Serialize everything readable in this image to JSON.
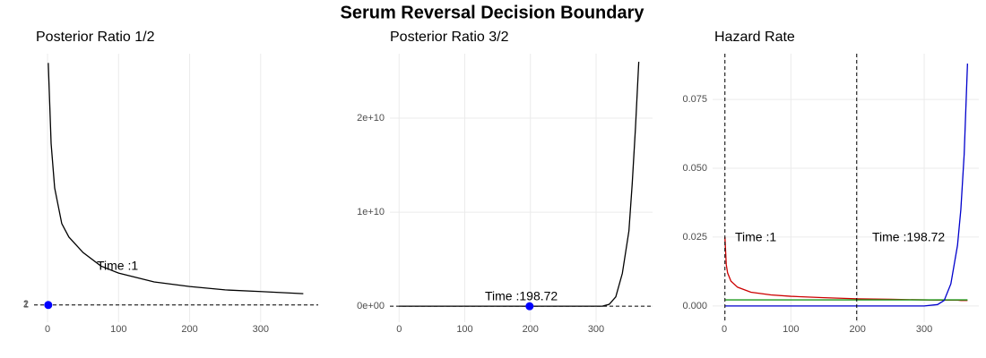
{
  "title": "Serum Reversal Decision Boundary",
  "chart_data": [
    {
      "type": "line",
      "title": "Posterior Ratio 1/2",
      "x": [
        1,
        5,
        10,
        20,
        30,
        50,
        75,
        100,
        150,
        200,
        250,
        300,
        360
      ],
      "series": [
        {
          "color": "#000000",
          "values": [
            578,
            386,
            280,
            195,
            163,
            126,
            94,
            77,
            56,
            45,
            37,
            33,
            28
          ]
        }
      ],
      "xlim": [
        -19,
        381
      ],
      "xticks": [
        0,
        100,
        200,
        300
      ],
      "ylim": [
        -40,
        600
      ],
      "yticks": [
        1,
        2
      ],
      "hlines": [
        1
      ],
      "vlines": [],
      "points": [
        {
          "x": 1,
          "y": 1,
          "color": "#0000ff"
        }
      ],
      "annotations": [
        {
          "text": "Time :1"
        }
      ],
      "grid": true
    },
    {
      "type": "line",
      "title": "Posterior Ratio 3/2",
      "x": [
        0,
        50,
        100,
        150,
        200,
        250,
        300,
        310,
        320,
        330,
        340,
        350,
        355,
        360,
        365
      ],
      "series": [
        {
          "color": "#000000",
          "values": [
            0,
            0,
            0,
            0,
            0,
            0,
            0,
            10000000,
            200000000,
            1000000000,
            3500000000,
            8000000000,
            13000000000,
            19000000000,
            26000000000
          ]
        }
      ],
      "xlim": [
        -14,
        386
      ],
      "xticks": [
        0,
        100,
        200,
        300
      ],
      "ylim": [
        -1700000000,
        26860000000
      ],
      "yticks": [
        {
          "value": 0,
          "label": "0e+00"
        },
        {
          "value": 10000000000,
          "label": "1e+10"
        },
        {
          "value": 20000000000,
          "label": "2e+10"
        }
      ],
      "hlines": [
        0
      ],
      "vlines": [],
      "points": [
        {
          "x": 198.72,
          "y": 0,
          "color": "#0000ff"
        }
      ],
      "annotations": [
        {
          "text": "Time :198.72"
        }
      ],
      "grid": true
    },
    {
      "type": "line",
      "title": "Hazard Rate",
      "x": [
        1,
        3,
        5,
        10,
        20,
        40,
        70,
        100,
        150,
        200,
        250,
        300,
        320,
        330,
        340,
        350,
        355,
        360,
        365
      ],
      "series": [
        {
          "color": "#cc0000",
          "values": [
            0.025,
            0.015,
            0.012,
            0.009,
            0.0068,
            0.005,
            0.004,
            0.0035,
            0.003,
            0.0026,
            0.0024,
            0.0022,
            0.0021,
            0.0021,
            0.0021,
            0.0021,
            0.002,
            0.002,
            0.002
          ]
        },
        {
          "color": "#1a9a1a",
          "values": [
            0.0022,
            0.0022,
            0.0022,
            0.0022,
            0.0022,
            0.0022,
            0.0022,
            0.0022,
            0.0022,
            0.0022,
            0.0022,
            0.0022,
            0.0022,
            0.0022,
            0.0022,
            0.0022,
            0.0022,
            0.0022,
            0.0022
          ]
        },
        {
          "color": "#0000cc",
          "values": [
            0,
            0,
            0,
            0,
            0,
            0,
            0,
            0,
            0,
            0,
            0,
            0,
            0.0005,
            0.002,
            0.008,
            0.022,
            0.035,
            0.055,
            0.088
          ]
        }
      ],
      "xlim": [
        -17.5,
        382
      ],
      "xticks": [
        0,
        100,
        200,
        300
      ],
      "ylim": [
        -0.0059,
        0.0916
      ],
      "yticks": [
        {
          "value": 0,
          "label": "0.000"
        },
        {
          "value": 0.025,
          "label": "0.025"
        },
        {
          "value": 0.05,
          "label": "0.050"
        },
        {
          "value": 0.075,
          "label": "0.075"
        }
      ],
      "hlines": [],
      "vlines": [
        1,
        198.72
      ],
      "points": [],
      "annotations": [
        {
          "text": "Time :1"
        },
        {
          "text": "Time :198.72"
        }
      ],
      "grid": true
    }
  ]
}
